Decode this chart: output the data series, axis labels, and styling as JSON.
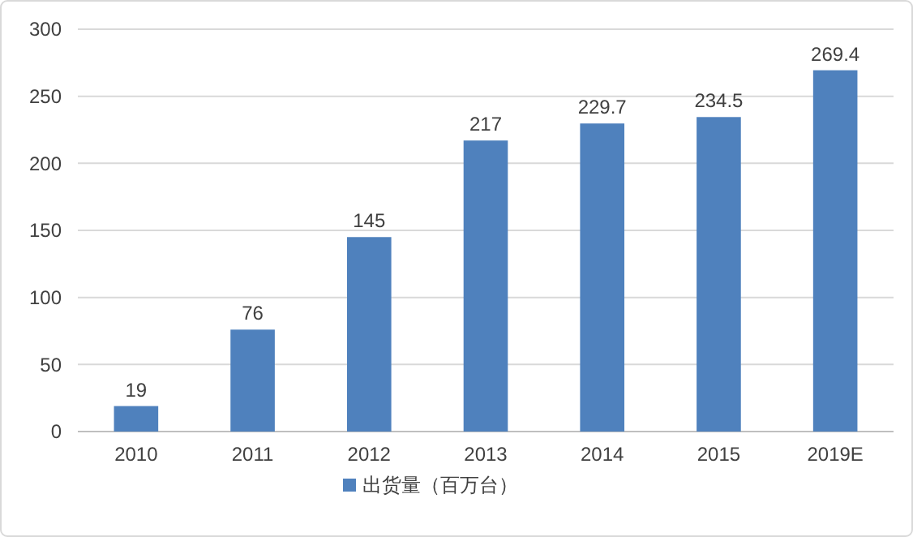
{
  "chart_data": {
    "type": "bar",
    "categories": [
      "2010",
      "2011",
      "2012",
      "2013",
      "2014",
      "2015",
      "2019E"
    ],
    "series": [
      {
        "name": "出货量（百万台）",
        "color": "#4f81bd",
        "values": [
          19,
          76,
          145,
          217,
          229.7,
          234.5,
          269.4
        ]
      }
    ],
    "ylim": [
      0,
      300
    ],
    "yticks": [
      0,
      50,
      100,
      150,
      200,
      250,
      300
    ],
    "grid": "y",
    "legend": "bottom",
    "data_labels": true
  }
}
